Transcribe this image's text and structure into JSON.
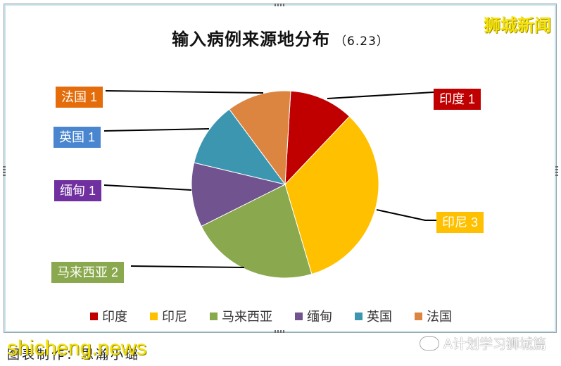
{
  "title": {
    "main": "输入病例来源地分布",
    "sub": "（6.23）"
  },
  "brand": "狮城新闻",
  "footer": {
    "source_text": "图表制作：思瀚小璐",
    "watermark": "shicheng.news",
    "wechat_account": "A计划学习狮城篇"
  },
  "labels": {
    "india": "印度 1",
    "indonesia": "印尼 3",
    "malaysia": "马来西亚 2",
    "myanmar": "缅甸 1",
    "uk": "英国 1",
    "france": "法国 1"
  },
  "legend": [
    {
      "name": "印度",
      "color": "#c00000"
    },
    {
      "name": "印尼",
      "color": "#ffc000"
    },
    {
      "name": "马来西亚",
      "color": "#8aa84d"
    },
    {
      "name": "缅甸",
      "color": "#71548f"
    },
    {
      "name": "英国",
      "color": "#3d96b0"
    },
    {
      "name": "法国",
      "color": "#dc8540"
    }
  ],
  "chart_data": {
    "type": "pie",
    "title": "输入病例来源地分布（6.23）",
    "categories": [
      "印度",
      "印尼",
      "马来西亚",
      "缅甸",
      "英国",
      "法国"
    ],
    "values": [
      1,
      3,
      2,
      1,
      1,
      1
    ],
    "colors": [
      "#c00000",
      "#ffc000",
      "#8aa84d",
      "#71548f",
      "#3d96b0",
      "#dc8540"
    ],
    "data_labels": [
      "印度 1",
      "印尼 3",
      "马来西亚 2",
      "缅甸 1",
      "英国 1",
      "法国 1"
    ],
    "start_angle": "12 o'clock, clockwise",
    "legend_position": "bottom"
  }
}
